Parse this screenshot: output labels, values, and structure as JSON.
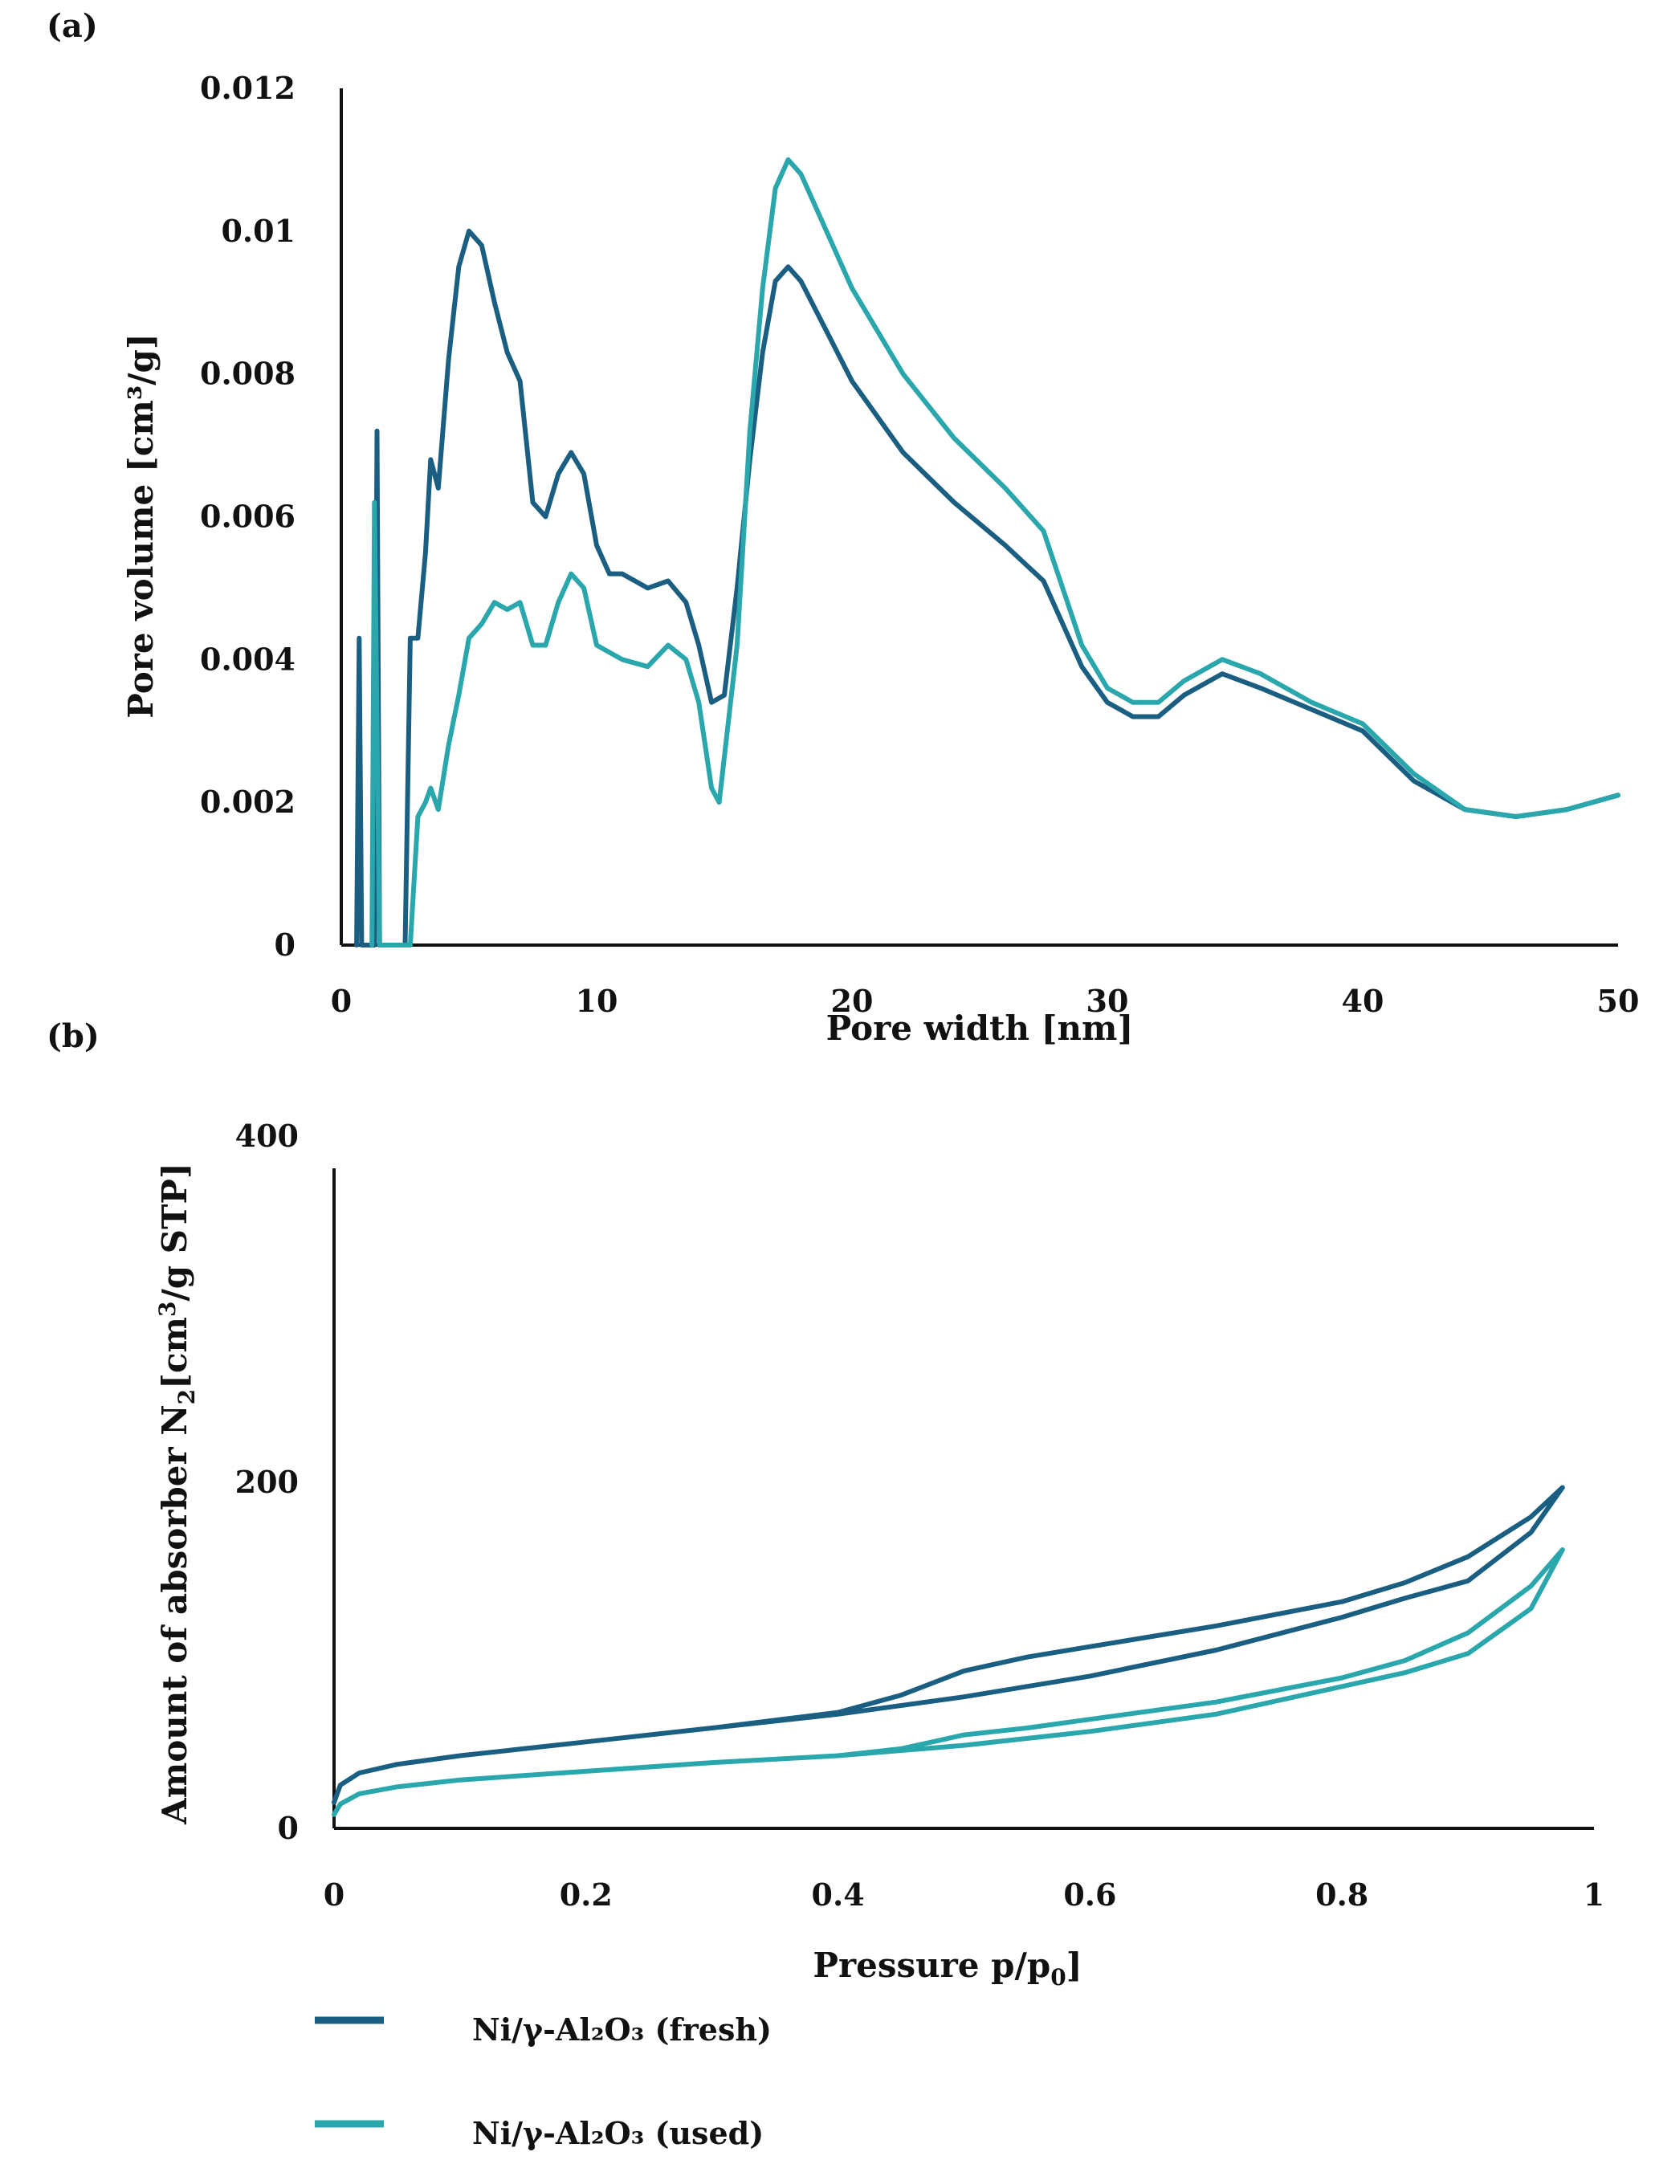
{
  "colors": {
    "fresh": "#1a5f82",
    "used": "#2aa6ad",
    "axis": "#111111"
  },
  "legend": [
    {
      "label": "Ni/γ-Al₂O₃ (fresh)",
      "color_key": "fresh"
    },
    {
      "label": "Ni/γ-Al₂O₃ (used)",
      "color_key": "used"
    }
  ],
  "chart_data": [
    {
      "panel_label": "(a)",
      "type": "line",
      "title": "",
      "xlabel": "Pore width [nm]",
      "ylabel": "Pore volume [cm³/g]",
      "xlim": [
        0,
        50
      ],
      "ylim": [
        0,
        0.012
      ],
      "xticks": [
        0,
        10,
        20,
        30,
        40,
        50
      ],
      "yticks": [
        0,
        0.002,
        0.004,
        0.006,
        0.008,
        0.01,
        0.012
      ],
      "xtick_labels": [
        "0",
        "10",
        "20",
        "30",
        "40",
        "50"
      ],
      "ytick_labels": [
        "0",
        "0.002",
        "0.004",
        "0.006",
        "0.008",
        "0.01",
        "0.012"
      ],
      "grid": false,
      "series": [
        {
          "name": "Ni/γ-Al₂O₃ (fresh)",
          "color_key": "fresh",
          "points": [
            [
              0.6,
              0
            ],
            [
              0.7,
              0.0043
            ],
            [
              0.8,
              0
            ],
            [
              1.3,
              0
            ],
            [
              1.4,
              0.0072
            ],
            [
              1.5,
              0
            ],
            [
              2.5,
              0
            ],
            [
              2.7,
              0.0043
            ],
            [
              3.0,
              0.0043
            ],
            [
              3.3,
              0.0055
            ],
            [
              3.5,
              0.0068
            ],
            [
              3.8,
              0.0064
            ],
            [
              4.2,
              0.0082
            ],
            [
              4.6,
              0.0095
            ],
            [
              5.0,
              0.01
            ],
            [
              5.5,
              0.0098
            ],
            [
              6.0,
              0.009
            ],
            [
              6.5,
              0.0083
            ],
            [
              7.0,
              0.0079
            ],
            [
              7.5,
              0.0062
            ],
            [
              8.0,
              0.006
            ],
            [
              8.5,
              0.0066
            ],
            [
              9.0,
              0.0069
            ],
            [
              9.5,
              0.0066
            ],
            [
              10.0,
              0.0056
            ],
            [
              10.5,
              0.0052
            ],
            [
              11.0,
              0.0052
            ],
            [
              12.0,
              0.005
            ],
            [
              12.8,
              0.0051
            ],
            [
              13.5,
              0.0048
            ],
            [
              14.0,
              0.0042
            ],
            [
              14.5,
              0.0034
            ],
            [
              15.0,
              0.0035
            ],
            [
              15.5,
              0.005
            ],
            [
              16.0,
              0.0068
            ],
            [
              16.5,
              0.0083
            ],
            [
              17.0,
              0.0093
            ],
            [
              17.5,
              0.0095
            ],
            [
              18.0,
              0.0093
            ],
            [
              19.0,
              0.0086
            ],
            [
              20.0,
              0.0079
            ],
            [
              22.0,
              0.0069
            ],
            [
              24.0,
              0.0062
            ],
            [
              26.0,
              0.0056
            ],
            [
              27.5,
              0.0051
            ],
            [
              29.0,
              0.0039
            ],
            [
              30.0,
              0.0034
            ],
            [
              31.0,
              0.0032
            ],
            [
              32.0,
              0.0032
            ],
            [
              33.0,
              0.0035
            ],
            [
              34.5,
              0.0038
            ],
            [
              36.0,
              0.0036
            ],
            [
              38.0,
              0.0033
            ],
            [
              40.0,
              0.003
            ],
            [
              42.0,
              0.0023
            ],
            [
              44.0,
              0.0019
            ],
            [
              46.0,
              0.0018
            ],
            [
              48.0,
              0.0019
            ],
            [
              50.0,
              0.0021
            ]
          ]
        },
        {
          "name": "Ni/γ-Al₂O₃ (used)",
          "color_key": "used",
          "points": [
            [
              1.2,
              0
            ],
            [
              1.3,
              0.0062
            ],
            [
              1.5,
              0
            ],
            [
              2.7,
              0
            ],
            [
              3.0,
              0.0018
            ],
            [
              3.3,
              0.002
            ],
            [
              3.5,
              0.0022
            ],
            [
              3.8,
              0.0019
            ],
            [
              4.2,
              0.0028
            ],
            [
              4.6,
              0.0035
            ],
            [
              5.0,
              0.0043
            ],
            [
              5.5,
              0.0045
            ],
            [
              6.0,
              0.0048
            ],
            [
              6.5,
              0.0047
            ],
            [
              7.0,
              0.0048
            ],
            [
              7.5,
              0.0042
            ],
            [
              8.0,
              0.0042
            ],
            [
              8.5,
              0.0048
            ],
            [
              9.0,
              0.0052
            ],
            [
              9.5,
              0.005
            ],
            [
              10.0,
              0.0042
            ],
            [
              11.0,
              0.004
            ],
            [
              12.0,
              0.0039
            ],
            [
              12.8,
              0.0042
            ],
            [
              13.5,
              0.004
            ],
            [
              14.0,
              0.0034
            ],
            [
              14.5,
              0.0022
            ],
            [
              14.8,
              0.002
            ],
            [
              15.5,
              0.0042
            ],
            [
              16.0,
              0.0072
            ],
            [
              16.5,
              0.0092
            ],
            [
              17.0,
              0.0106
            ],
            [
              17.5,
              0.011
            ],
            [
              18.0,
              0.0108
            ],
            [
              19.0,
              0.01
            ],
            [
              20.0,
              0.0092
            ],
            [
              22.0,
              0.008
            ],
            [
              24.0,
              0.0071
            ],
            [
              26.0,
              0.0064
            ],
            [
              27.5,
              0.0058
            ],
            [
              29.0,
              0.0042
            ],
            [
              30.0,
              0.0036
            ],
            [
              31.0,
              0.0034
            ],
            [
              32.0,
              0.0034
            ],
            [
              33.0,
              0.0037
            ],
            [
              34.5,
              0.004
            ],
            [
              36.0,
              0.0038
            ],
            [
              38.0,
              0.0034
            ],
            [
              40.0,
              0.0031
            ],
            [
              42.0,
              0.0024
            ],
            [
              44.0,
              0.0019
            ],
            [
              46.0,
              0.0018
            ],
            [
              48.0,
              0.0019
            ],
            [
              50.0,
              0.0021
            ]
          ]
        }
      ]
    },
    {
      "panel_label": "(b)",
      "type": "line",
      "title": "",
      "xlabel_main": "Pressure p/p",
      "xlabel_sub": "0",
      "xlabel_close": "]",
      "ylabel_main": "Amount of absorber N",
      "ylabel_sub": "2",
      "ylabel_rest": "[cm",
      "ylabel_sup": "3",
      "ylabel_end": "/g STP]",
      "xlim": [
        0,
        1
      ],
      "ylim": [
        0,
        400
      ],
      "xticks": [
        0,
        0.2,
        0.4,
        0.6,
        0.8,
        1
      ],
      "yticks": [
        0,
        200,
        400
      ],
      "xtick_labels": [
        "0",
        "0.2",
        "0.4",
        "0.6",
        "0.8",
        "1"
      ],
      "ytick_labels": [
        "0",
        "200",
        "400"
      ],
      "grid": false,
      "series": [
        {
          "name": "Ni/γ-Al₂O₃ (fresh)",
          "color_key": "fresh",
          "points": [
            [
              0.0,
              15
            ],
            [
              0.005,
              25
            ],
            [
              0.02,
              32
            ],
            [
              0.05,
              37
            ],
            [
              0.1,
              42
            ],
            [
              0.2,
              50
            ],
            [
              0.3,
              58
            ],
            [
              0.4,
              67
            ],
            [
              0.45,
              77
            ],
            [
              0.5,
              91
            ],
            [
              0.55,
              99
            ],
            [
              0.6,
              105
            ],
            [
              0.7,
              117
            ],
            [
              0.8,
              131
            ],
            [
              0.85,
              142
            ],
            [
              0.9,
              157
            ],
            [
              0.95,
              180
            ],
            [
              0.975,
              197
            ],
            [
              0.95,
              171
            ],
            [
              0.9,
              143
            ],
            [
              0.85,
              133
            ],
            [
              0.8,
              122
            ],
            [
              0.7,
              103
            ],
            [
              0.6,
              88
            ],
            [
              0.5,
              76
            ],
            [
              0.4,
              66
            ],
            [
              0.3,
              58
            ],
            [
              0.2,
              50
            ],
            [
              0.1,
              42
            ],
            [
              0.05,
              37
            ],
            [
              0.02,
              32
            ],
            [
              0.005,
              25
            ],
            [
              0.0,
              15
            ]
          ]
        },
        {
          "name": "Ni/γ-Al₂O₃ (used)",
          "color_key": "used",
          "points": [
            [
              0.0,
              8
            ],
            [
              0.005,
              14
            ],
            [
              0.02,
              20
            ],
            [
              0.05,
              24
            ],
            [
              0.1,
              28
            ],
            [
              0.2,
              33
            ],
            [
              0.3,
              38
            ],
            [
              0.4,
              42
            ],
            [
              0.45,
              46
            ],
            [
              0.5,
              54
            ],
            [
              0.55,
              58
            ],
            [
              0.6,
              63
            ],
            [
              0.7,
              73
            ],
            [
              0.8,
              87
            ],
            [
              0.85,
              97
            ],
            [
              0.9,
              113
            ],
            [
              0.95,
              140
            ],
            [
              0.975,
              161
            ],
            [
              0.95,
              127
            ],
            [
              0.9,
              101
            ],
            [
              0.85,
              90
            ],
            [
              0.8,
              82
            ],
            [
              0.7,
              66
            ],
            [
              0.6,
              56
            ],
            [
              0.5,
              48
            ],
            [
              0.4,
              42
            ],
            [
              0.3,
              38
            ],
            [
              0.2,
              33
            ],
            [
              0.1,
              28
            ],
            [
              0.05,
              24
            ],
            [
              0.02,
              20
            ],
            [
              0.005,
              14
            ],
            [
              0.0,
              8
            ]
          ]
        }
      ]
    }
  ]
}
